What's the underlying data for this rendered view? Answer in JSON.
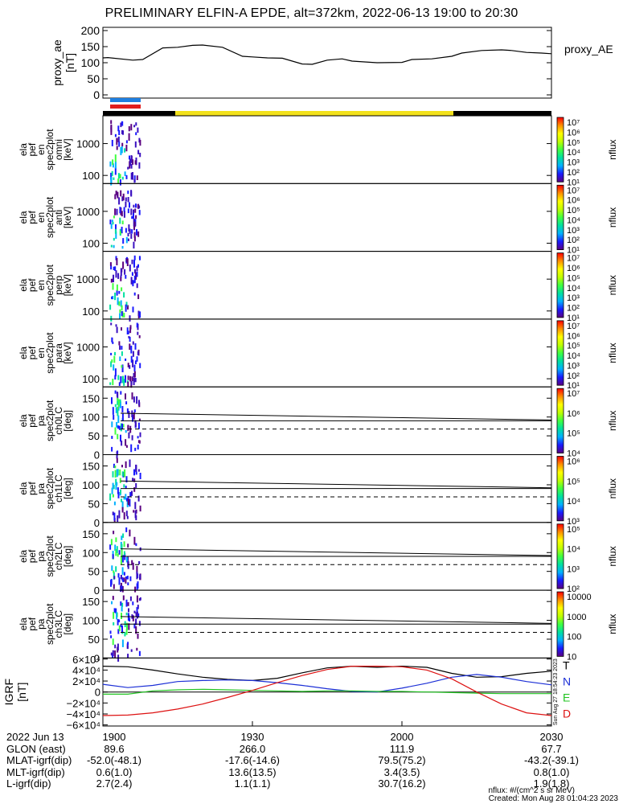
{
  "title": "PRELIMINARY ELFIN-A EPDE, alt=372km, 2022-06-13 19:00 to 20:30",
  "colors": {
    "ae_line": "#000000",
    "bar_blue": "#1e7fe0",
    "bar_red": "#e01e1e",
    "track_black": "#000000",
    "track_yellow": "#f2e11b",
    "igrf_T": "#000000",
    "igrf_N": "#1c2fd6",
    "igrf_E": "#22c422",
    "igrf_D": "#dd1111"
  },
  "footer": {
    "rows": [
      {
        "label": "2022 Jun 13",
        "values": [
          "1900",
          "1930",
          "2000",
          "2030"
        ]
      },
      {
        "label": "GLON (east)",
        "values": [
          "89.6",
          "266.0",
          "111.9",
          "67.7"
        ]
      },
      {
        "label": "MLAT-igrf(dip)",
        "values": [
          "-52.0(-48.1)",
          "-17.6(-14.6)",
          "79.5(75.2)",
          "-43.2(-39.1)"
        ]
      },
      {
        "label": "MLT-igrf(dip)",
        "values": [
          "0.6(1.0)",
          "13.6(13.5)",
          "3.4(3.5)",
          "0.8(1.0)"
        ]
      },
      {
        "label": "L-igrf(dip)",
        "values": [
          "2.7(2.4)",
          "1.1(1.1)",
          "30.7(16.2)",
          "1.9(1.8)"
        ]
      }
    ],
    "units_note": "nflux: #/(cm^2 s sr MeV)",
    "created": "Created: Mon Aug 28 01:04:23 2023",
    "side_stamp": "Sun Aug 27 18:54:23 2023"
  },
  "chart_data": [
    {
      "type": "line",
      "panel": "proxy_ae",
      "ylabel": "proxy_ae [nT]",
      "legend": "proxy_AE",
      "ylim": [
        -10,
        210
      ],
      "yticks": [
        0,
        50,
        100,
        150,
        200
      ],
      "xlim": [
        0,
        90
      ],
      "x": [
        0,
        1,
        6,
        8,
        12,
        15,
        18,
        20,
        24,
        28,
        30,
        33,
        36,
        40,
        42,
        45,
        48,
        50,
        55,
        60,
        62,
        66,
        70,
        72,
        76,
        80,
        82,
        85,
        88,
        90
      ],
      "y": [
        115,
        116,
        108,
        110,
        146,
        148,
        154,
        155,
        148,
        120,
        118,
        115,
        114,
        96,
        95,
        108,
        112,
        105,
        100,
        101,
        110,
        112,
        120,
        130,
        138,
        140,
        138,
        132,
        130,
        128
      ]
    },
    {
      "type": "heatmap",
      "panels": [
        {
          "id": "omni",
          "ylabel": [
            "ela",
            "pef",
            "en",
            "spec2plot",
            "omni",
            "[keV]"
          ],
          "yticks": [
            "1000",
            "100"
          ],
          "cbar_ticks": [
            "10⁷",
            "10⁶",
            "10⁵",
            "10⁴",
            "10³",
            "10²",
            "10¹"
          ],
          "cbar_label": "nflux"
        },
        {
          "id": "anti",
          "ylabel": [
            "ela",
            "pef",
            "en",
            "spec2plot",
            "anti",
            "[keV]"
          ],
          "yticks": [
            "1000",
            "100"
          ],
          "cbar_ticks": [
            "10⁷",
            "10⁶",
            "10⁵",
            "10⁴",
            "10³",
            "10²",
            "10¹"
          ],
          "cbar_label": "nflux"
        },
        {
          "id": "perp",
          "ylabel": [
            "ela",
            "pef",
            "en",
            "spec2plot",
            "perp",
            "[keV]"
          ],
          "yticks": [
            "1000",
            "100"
          ],
          "cbar_ticks": [
            "10⁷",
            "10⁶",
            "10⁵",
            "10⁴",
            "10³",
            "10²",
            "10¹"
          ],
          "cbar_label": "nflux"
        },
        {
          "id": "para",
          "ylabel": [
            "ela",
            "pef",
            "en",
            "spec2plot",
            "para",
            "[keV]"
          ],
          "yticks": [
            "1000",
            "100"
          ],
          "cbar_ticks": [
            "10⁷",
            "10⁶",
            "10⁵",
            "10⁴",
            "10³",
            "10²",
            "10¹"
          ],
          "cbar_label": "nflux"
        },
        {
          "id": "ch0LC",
          "ylabel": [
            "ela",
            "pef",
            "pa",
            "spec2plot",
            "ch0LC",
            "[deg]"
          ],
          "yticks": [
            "150",
            "100",
            "50",
            "0"
          ],
          "cbar_ticks": [
            "10⁷",
            "10⁶",
            "10⁵",
            "10⁴"
          ],
          "cbar_label": "nflux"
        },
        {
          "id": "ch1LC",
          "ylabel": [
            "ela",
            "pef",
            "pa",
            "spec2plot",
            "ch1LC",
            "[deg]"
          ],
          "yticks": [
            "150",
            "100",
            "50",
            "0"
          ],
          "cbar_ticks": [
            "10⁶",
            "10⁵",
            "10⁴",
            "10³"
          ],
          "cbar_label": "nflux"
        },
        {
          "id": "ch2LC",
          "ylabel": [
            "ela",
            "pef",
            "pa",
            "spec2plot",
            "ch2LC",
            "[deg]"
          ],
          "yticks": [
            "150",
            "100",
            "50",
            "0"
          ],
          "cbar_ticks": [
            "10⁵",
            "10⁴",
            "10³",
            "10²"
          ],
          "cbar_label": "nflux"
        },
        {
          "id": "ch3LC",
          "ylabel": [
            "ela",
            "pef",
            "pa",
            "spec2plot",
            "ch3LC",
            "[deg]"
          ],
          "yticks": [
            "150",
            "100",
            "50",
            "0"
          ],
          "cbar_ticks": [
            "10000",
            "1000",
            "100",
            "10"
          ],
          "cbar_label": "nflux"
        }
      ]
    },
    {
      "type": "line",
      "panel": "igrf",
      "ylabel": "IGRF [nT]",
      "yticks": [
        "6×10⁴",
        "4×10⁴",
        "2×10⁴",
        "0",
        "−2×10⁴",
        "−4×10⁴",
        "−6×10⁴"
      ],
      "ylim": [
        -62000,
        62000
      ],
      "xlim": [
        0,
        90
      ],
      "x": [
        0,
        5,
        10,
        15,
        20,
        25,
        30,
        35,
        40,
        45,
        50,
        55,
        60,
        65,
        70,
        75,
        80,
        85,
        90
      ],
      "series": [
        {
          "name": "T",
          "values": [
            47000,
            46000,
            40000,
            33000,
            27000,
            23000,
            21000,
            25000,
            35000,
            44000,
            47000,
            45000,
            47000,
            45000,
            34000,
            27000,
            28000,
            34000,
            38000
          ]
        },
        {
          "name": "N",
          "values": [
            14000,
            8000,
            12000,
            19000,
            21000,
            22000,
            21000,
            17000,
            12000,
            6000,
            1000,
            0,
            7000,
            16000,
            27000,
            32000,
            27000,
            19000,
            13000
          ]
        },
        {
          "name": "E",
          "values": [
            -4000,
            -4000,
            2000,
            4000,
            5000,
            4000,
            3000,
            2000,
            1000,
            2000,
            2000,
            1000,
            1000,
            0,
            -1000,
            -2000,
            -3000,
            -3000,
            -3000
          ]
        },
        {
          "name": "D",
          "values": [
            -43000,
            -42000,
            -38000,
            -31000,
            -22000,
            -10000,
            3000,
            17000,
            30000,
            41000,
            47000,
            47000,
            46000,
            40000,
            24000,
            0,
            -22000,
            -38000,
            -43000
          ]
        }
      ]
    }
  ]
}
